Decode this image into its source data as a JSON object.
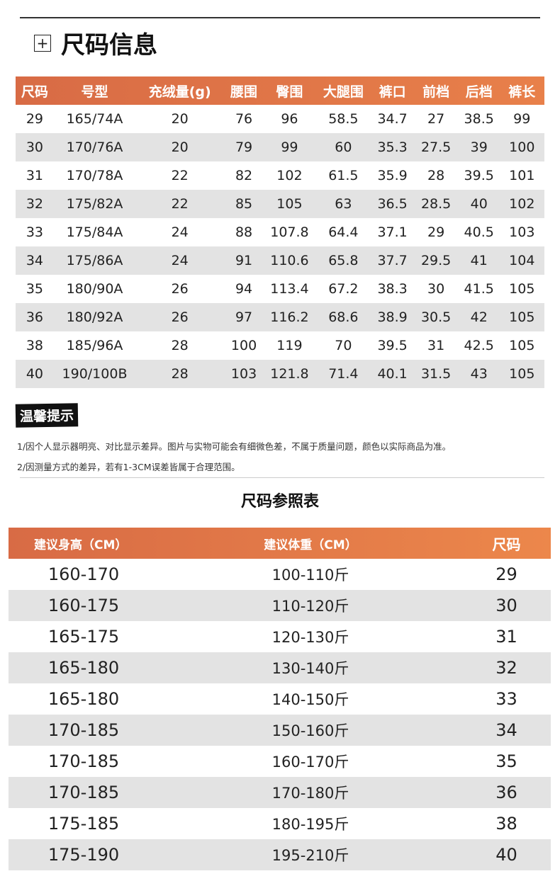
{
  "section_title": "尺码信息",
  "size_info": {
    "headers": [
      "尺码",
      "号型",
      "充绒量(g)",
      "腰围",
      "臀围",
      "大腿围",
      "裤口",
      "前档",
      "后档",
      "裤长"
    ],
    "rows": [
      [
        "29",
        "165/74A",
        "20",
        "76",
        "96",
        "58.5",
        "34.7",
        "27",
        "38.5",
        "99"
      ],
      [
        "30",
        "170/76A",
        "20",
        "79",
        "99",
        "60",
        "35.3",
        "27.5",
        "39",
        "100"
      ],
      [
        "31",
        "170/78A",
        "22",
        "82",
        "102",
        "61.5",
        "35.9",
        "28",
        "39.5",
        "101"
      ],
      [
        "32",
        "175/82A",
        "22",
        "85",
        "105",
        "63",
        "36.5",
        "28.5",
        "40",
        "102"
      ],
      [
        "33",
        "175/84A",
        "24",
        "88",
        "107.8",
        "64.4",
        "37.1",
        "29",
        "40.5",
        "103"
      ],
      [
        "34",
        "175/86A",
        "24",
        "91",
        "110.6",
        "65.8",
        "37.7",
        "29.5",
        "41",
        "104"
      ],
      [
        "35",
        "180/90A",
        "26",
        "94",
        "113.4",
        "67.2",
        "38.3",
        "30",
        "41.5",
        "105"
      ],
      [
        "36",
        "180/92A",
        "26",
        "97",
        "116.2",
        "68.6",
        "38.9",
        "30.5",
        "42",
        "105"
      ],
      [
        "38",
        "185/96A",
        "28",
        "100",
        "119",
        "70",
        "39.5",
        "31",
        "42.5",
        "105"
      ],
      [
        "40",
        "190/100B",
        "28",
        "103",
        "121.8",
        "71.4",
        "40.1",
        "31.5",
        "43",
        "105"
      ]
    ]
  },
  "tips": {
    "label": "温馨提示",
    "notes": [
      "1/因个人显示器明亮、对比显示差异。图片与实物可能会有细微色差，不属于质量问题，颜色以实际商品为准。",
      "2/因测量方式的差异，若有1-3CM误差皆属于合理范围。"
    ]
  },
  "reference": {
    "title": "尺码参照表",
    "headers": [
      "建议身高（CM）",
      "建议体重（CM）",
      "尺码"
    ],
    "rows": [
      [
        "160-170",
        "100-110斤",
        "29"
      ],
      [
        "160-175",
        "110-120斤",
        "30"
      ],
      [
        "165-175",
        "120-130斤",
        "31"
      ],
      [
        "165-180",
        "130-140斤",
        "32"
      ],
      [
        "165-180",
        "140-150斤",
        "33"
      ],
      [
        "170-185",
        "150-160斤",
        "34"
      ],
      [
        "170-185",
        "160-170斤",
        "35"
      ],
      [
        "170-185",
        "170-180斤",
        "36"
      ],
      [
        "175-185",
        "180-195斤",
        "38"
      ],
      [
        "175-190",
        "195-210斤",
        "40"
      ]
    ]
  },
  "colors": {
    "header_orange": "#e0744a",
    "stripe_gray": "#e3e3e3"
  }
}
